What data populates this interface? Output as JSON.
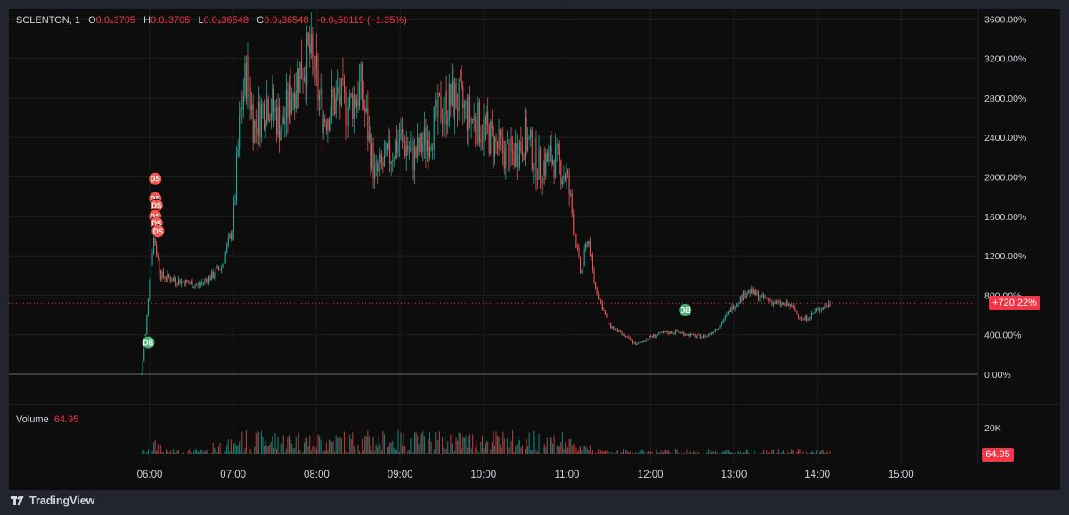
{
  "legend": {
    "symbol": "SCLENTON, 1",
    "o_key": "O",
    "o_val": "0.0₄3705",
    "h_key": "H",
    "h_val": "0.0₄3705",
    "l_key": "L",
    "l_val": "0.0₄36548",
    "c_key": "C",
    "c_val": "0.0₄36548",
    "chg": "-0.0₅50119 (−1.35%)"
  },
  "volume_legend": {
    "label": "Volume",
    "value": "64.95"
  },
  "price_badge": "+720.22%",
  "volume_badge": "64.95",
  "brand": "TradingView",
  "colors": {
    "up": "#26a69a",
    "down": "#ef5350",
    "marker_ds": "#f05950",
    "marker_db": "#4caf76",
    "badge": "#f23645"
  },
  "chart_data": {
    "type": "candlestick",
    "y_axis": {
      "unit": "%",
      "ticks": [
        "3600.00%",
        "3200.00%",
        "2800.00%",
        "2400.00%",
        "2000.00%",
        "1600.00%",
        "1200.00%",
        "800.00%",
        "400.00%",
        "0.00%"
      ],
      "range": [
        0,
        3600
      ]
    },
    "volume_axis": {
      "ticks": [
        "20K"
      ]
    },
    "x_axis": {
      "ticks": [
        "06:00",
        "07:00",
        "08:00",
        "09:00",
        "10:00",
        "11:00",
        "12:00",
        "13:00",
        "14:00",
        "15:00"
      ]
    },
    "series": {
      "name": "SCLENTON, 1",
      "points": [
        [
          "05:54",
          0
        ],
        [
          "05:57",
          400
        ],
        [
          "06:00",
          1000
        ],
        [
          "06:03",
          1400
        ],
        [
          "06:08",
          1000
        ],
        [
          "06:20",
          950
        ],
        [
          "06:35",
          900
        ],
        [
          "06:45",
          1000
        ],
        [
          "06:52",
          1100
        ],
        [
          "07:00",
          1500
        ],
        [
          "07:05",
          2600
        ],
        [
          "07:10",
          3100
        ],
        [
          "07:15",
          2500
        ],
        [
          "07:25",
          2800
        ],
        [
          "07:35",
          2500
        ],
        [
          "07:45",
          3000
        ],
        [
          "07:55",
          3250
        ],
        [
          "08:05",
          2600
        ],
        [
          "08:15",
          2800
        ],
        [
          "08:22",
          2700
        ],
        [
          "08:32",
          2900
        ],
        [
          "08:42",
          2000
        ],
        [
          "08:52",
          2200
        ],
        [
          "09:00",
          2400
        ],
        [
          "09:10",
          2200
        ],
        [
          "09:20",
          2400
        ],
        [
          "09:30",
          2700
        ],
        [
          "09:40",
          2800
        ],
        [
          "09:50",
          2600
        ],
        [
          "10:00",
          2500
        ],
        [
          "10:10",
          2300
        ],
        [
          "10:20",
          2200
        ],
        [
          "10:30",
          2400
        ],
        [
          "10:40",
          2100
        ],
        [
          "10:50",
          2200
        ],
        [
          "11:00",
          2000
        ],
        [
          "11:10",
          1000
        ],
        [
          "11:15",
          1400
        ],
        [
          "11:20",
          900
        ],
        [
          "11:30",
          500
        ],
        [
          "11:40",
          400
        ],
        [
          "11:50",
          300
        ],
        [
          "12:00",
          380
        ],
        [
          "12:10",
          420
        ],
        [
          "12:20",
          430
        ],
        [
          "12:30",
          390
        ],
        [
          "12:40",
          380
        ],
        [
          "12:50",
          500
        ],
        [
          "13:00",
          700
        ],
        [
          "13:10",
          850
        ],
        [
          "13:20",
          780
        ],
        [
          "13:30",
          720
        ],
        [
          "13:40",
          700
        ],
        [
          "13:50",
          550
        ],
        [
          "14:00",
          650
        ],
        [
          "14:10",
          720
        ]
      ]
    },
    "markers": [
      {
        "label": "DS",
        "time": "06:04",
        "value": 1980
      },
      {
        "label": "DS",
        "time": "06:04",
        "value": 1780
      },
      {
        "label": "DS",
        "time": "06:05",
        "value": 1710
      },
      {
        "label": "DS",
        "time": "06:04",
        "value": 1600
      },
      {
        "label": "DS",
        "time": "06:05",
        "value": 1530
      },
      {
        "label": "DS",
        "time": "06:06",
        "value": 1450
      },
      {
        "label": "DB",
        "time": "05:59",
        "value": 320
      },
      {
        "label": "DB",
        "time": "12:25",
        "value": 650
      }
    ],
    "current_value": 720.22
  }
}
